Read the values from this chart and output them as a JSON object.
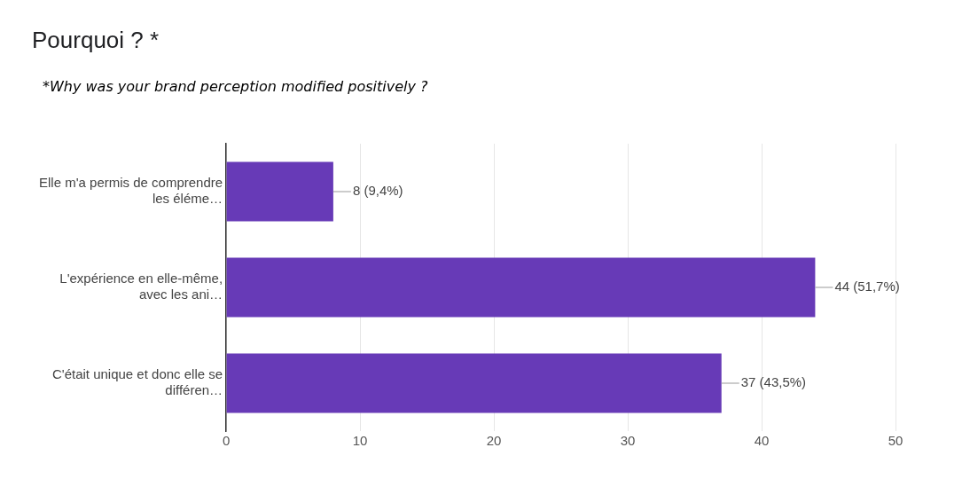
{
  "chart_data": {
    "type": "bar",
    "orientation": "horizontal",
    "title": "Pourquoi ? *",
    "subtitle": "*Why was your brand perception modified positively ?",
    "categories": [
      "Elle m'a permis de comprendre\nles éléme…",
      "L'expérience en elle-même,\navec les ani…",
      "C'était unique et donc elle se\ndifféren…"
    ],
    "values": [
      8,
      44,
      37
    ],
    "color": "#673ab7",
    "value_labels": [
      "8 (9,4%)",
      "44 (51,7%)",
      "37 (43,5%)"
    ],
    "xlim": [
      0,
      50
    ],
    "xticks": [
      0,
      10,
      20,
      30,
      40,
      50
    ],
    "grid": "x"
  }
}
